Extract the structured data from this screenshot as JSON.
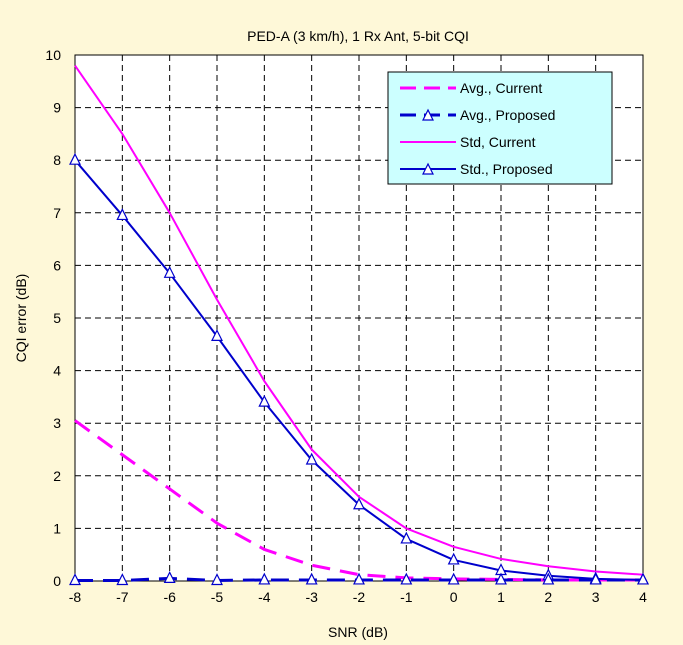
{
  "chart_data": {
    "type": "line",
    "title": "PED-A (3 km/h), 1 Rx Ant, 5-bit CQI",
    "xlabel": "SNR (dB)",
    "ylabel": "CQI error (dB)",
    "xlim": [
      -8,
      4
    ],
    "ylim": [
      0,
      10
    ],
    "x_ticks": [
      "-8",
      "-7",
      "-6",
      "-5",
      "-4",
      "-3",
      "-2",
      "-1",
      "0",
      "1",
      "2",
      "3",
      "4"
    ],
    "y_ticks": [
      "0",
      "1",
      "2",
      "3",
      "4",
      "5",
      "6",
      "7",
      "8",
      "9",
      "10"
    ],
    "grid": true,
    "legend_position": "top-right",
    "x": [
      -8,
      -7,
      -6,
      -5,
      -4,
      -3,
      -2,
      -1,
      0,
      1,
      2,
      3,
      4
    ],
    "series": [
      {
        "name": "Avg., Current",
        "color": "#FF00FF",
        "style": "dashed",
        "marker": "none",
        "values": [
          3.05,
          2.4,
          1.75,
          1.1,
          0.6,
          0.3,
          0.12,
          0.06,
          0.04,
          0.03,
          0.02,
          0.02,
          0.02
        ]
      },
      {
        "name": "Avg., Proposed",
        "color": "#0000CC",
        "style": "dashed",
        "marker": "triangle",
        "values": [
          0.01,
          0.01,
          0.05,
          0.01,
          0.02,
          0.02,
          0.02,
          0.02,
          0.02,
          0.02,
          0.02,
          0.02,
          0.02
        ]
      },
      {
        "name": "Std, Current",
        "color": "#FF00FF",
        "style": "solid",
        "marker": "none",
        "values": [
          9.8,
          8.5,
          7.0,
          5.35,
          3.8,
          2.5,
          1.6,
          1.0,
          0.65,
          0.42,
          0.28,
          0.18,
          0.12
        ]
      },
      {
        "name": "Std., Proposed",
        "color": "#0000CC",
        "style": "solid",
        "marker": "triangle",
        "values": [
          8.0,
          6.95,
          5.85,
          4.65,
          3.4,
          2.3,
          1.45,
          0.8,
          0.4,
          0.2,
          0.1,
          0.04,
          0.02
        ]
      }
    ]
  }
}
